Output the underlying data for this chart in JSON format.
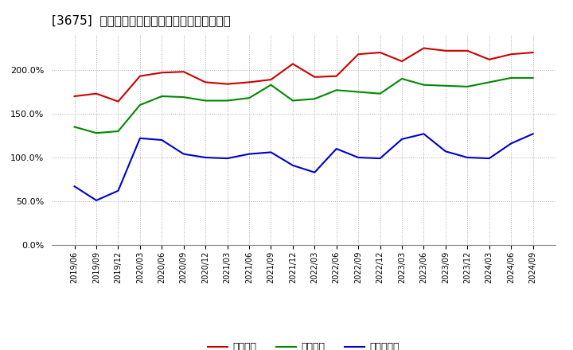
{
  "title": "[3675]  流動比率、当座比率、現預金比率の推移",
  "x_labels": [
    "2019/06",
    "2019/09",
    "2019/12",
    "2020/03",
    "2020/06",
    "2020/09",
    "2020/12",
    "2021/03",
    "2021/06",
    "2021/09",
    "2021/12",
    "2022/03",
    "2022/06",
    "2022/09",
    "2022/12",
    "2023/03",
    "2023/06",
    "2023/09",
    "2023/12",
    "2024/03",
    "2024/06",
    "2024/09"
  ],
  "ryudo": [
    170,
    173,
    164,
    193,
    197,
    198,
    186,
    184,
    186,
    189,
    207,
    192,
    193,
    218,
    220,
    210,
    225,
    222,
    222,
    212,
    218,
    220
  ],
  "toza": [
    135,
    128,
    130,
    160,
    170,
    169,
    165,
    165,
    168,
    183,
    165,
    167,
    177,
    175,
    173,
    190,
    183,
    182,
    181,
    186,
    191,
    191
  ],
  "genyo": [
    67,
    51,
    62,
    122,
    120,
    104,
    100,
    99,
    104,
    106,
    91,
    83,
    110,
    100,
    99,
    121,
    127,
    107,
    100,
    99,
    116,
    127
  ],
  "line_color_ryudo": "#cc0000",
  "line_color_toza": "#008800",
  "line_color_genyo": "#0000cc",
  "legend_label_ryudo": "流動比率",
  "legend_label_toza": "当座比率",
  "legend_label_genyo": "現預金比率",
  "ylim": [
    0,
    240
  ],
  "yticks": [
    0,
    50,
    100,
    150,
    200
  ],
  "background_color": "#ffffff",
  "plot_bg_color": "#ffffff",
  "grid_color": "#aaaaaa",
  "grid_style": ":"
}
